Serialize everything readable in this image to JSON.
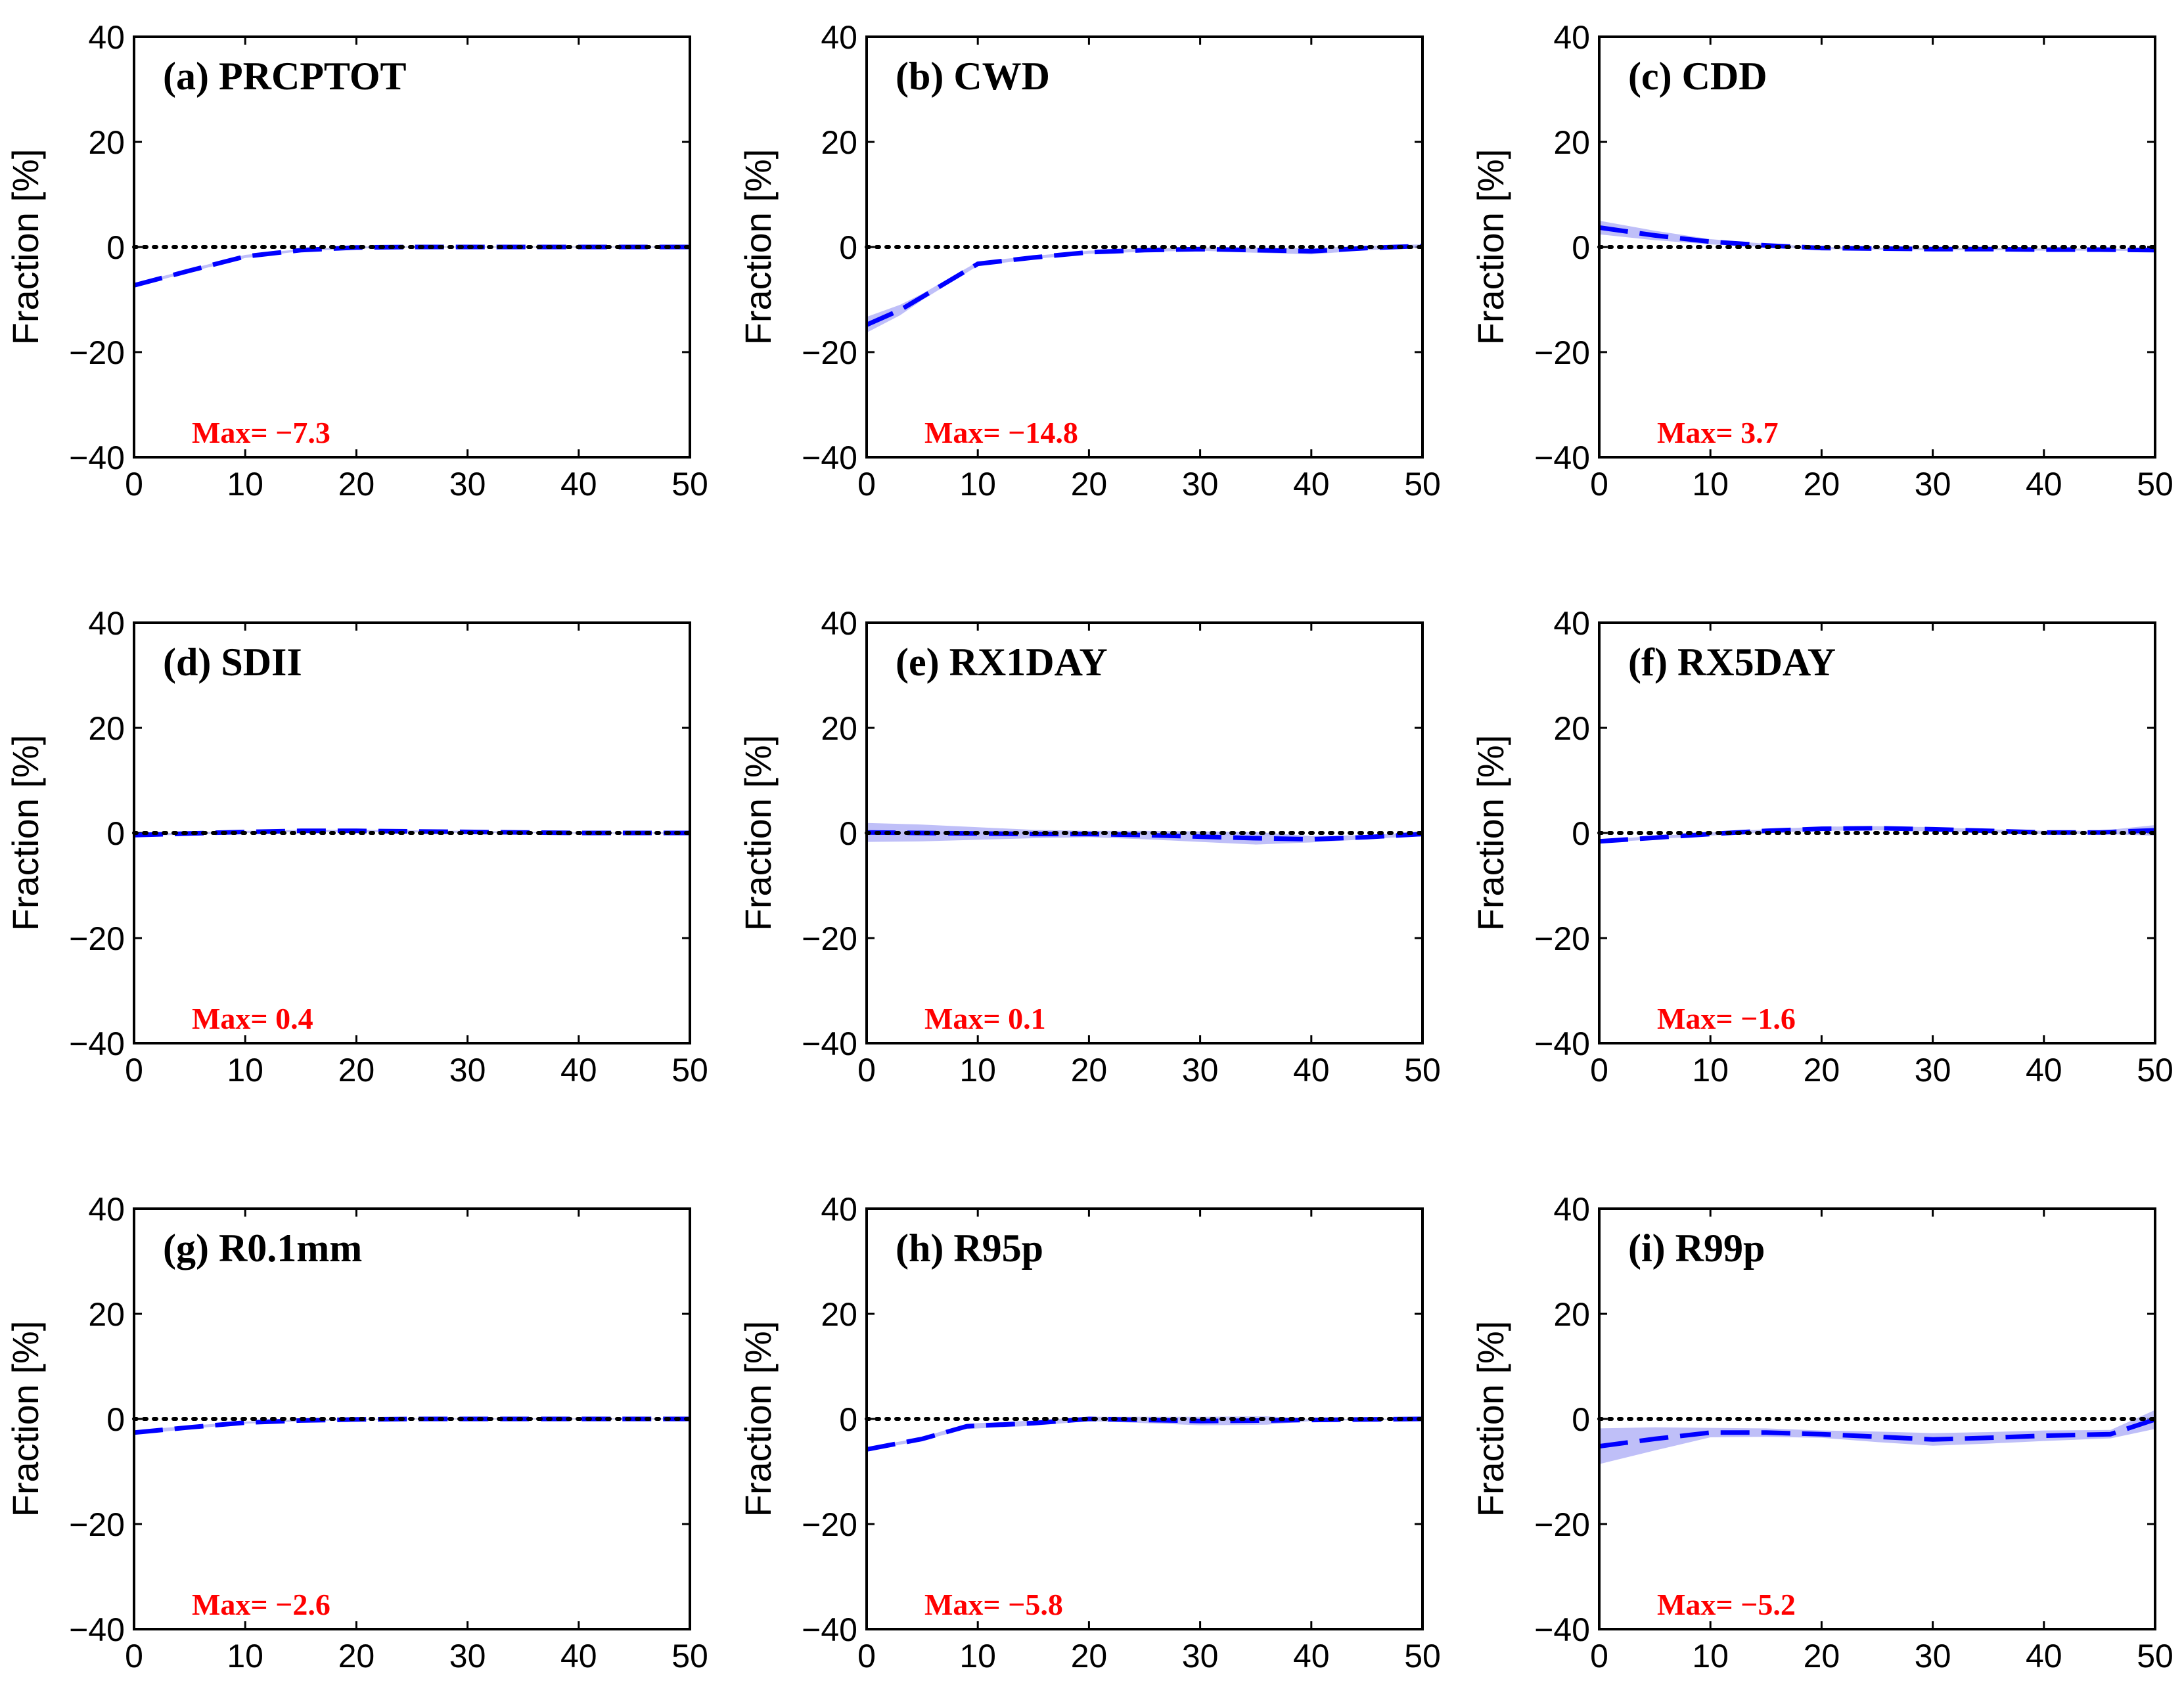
{
  "figure": {
    "colors": {
      "series": "#0000ff",
      "band": "#a9a9f5",
      "zero_line": "#000000",
      "max_text": "#ff0000",
      "axis": "#000000"
    }
  },
  "chart_data": [
    {
      "type": "line",
      "title": "(a) PRCPTOT",
      "ylabel": "Fraction [%]",
      "xlim": [
        0,
        50
      ],
      "ylim": [
        -40,
        40
      ],
      "xticks": [
        "0",
        "10",
        "20",
        "30",
        "40",
        "50"
      ],
      "yticks": [
        "40",
        "20",
        "0",
        "−20",
        "−40"
      ],
      "annotation": "Max= −7.3",
      "series": [
        {
          "style": "dashed",
          "x": [
            0,
            5,
            10,
            15,
            20,
            25,
            30,
            35,
            40,
            45,
            50
          ],
          "y": [
            -7.3,
            -4.5,
            -1.8,
            -0.6,
            -0.1,
            0.0,
            0.0,
            0.0,
            0.0,
            0.0,
            0.0
          ],
          "spread": [
            0.3,
            0.3,
            0.3,
            0.2,
            0.2,
            0.1,
            0.1,
            0.1,
            0.1,
            0.1,
            0.1
          ]
        }
      ],
      "zero_line": true
    },
    {
      "type": "line",
      "title": "(b) CWD",
      "ylabel": "Fraction [%]",
      "xlim": [
        0,
        50
      ],
      "ylim": [
        -40,
        40
      ],
      "xticks": [
        "0",
        "10",
        "20",
        "30",
        "40",
        "50"
      ],
      "yticks": [
        "40",
        "20",
        "0",
        "−20",
        "−40"
      ],
      "annotation": "Max= −14.8",
      "series": [
        {
          "style": "dashed",
          "x": [
            0,
            3,
            5,
            10,
            15,
            20,
            25,
            30,
            35,
            40,
            45,
            50
          ],
          "y": [
            -14.8,
            -12.0,
            -9.5,
            -3.2,
            -2.0,
            -1.0,
            -0.6,
            -0.4,
            -0.6,
            -0.8,
            -0.2,
            0.2
          ],
          "spread": [
            1.5,
            1.0,
            0.6,
            0.4,
            0.3,
            0.3,
            0.3,
            0.3,
            0.5,
            0.6,
            0.4,
            0.3
          ]
        }
      ],
      "zero_line": true
    },
    {
      "type": "line",
      "title": "(c) CDD",
      "ylabel": "Fraction [%]",
      "xlim": [
        0,
        50
      ],
      "ylim": [
        -40,
        40
      ],
      "xticks": [
        "0",
        "10",
        "20",
        "30",
        "40",
        "50"
      ],
      "yticks": [
        "40",
        "20",
        "0",
        "−20",
        "−40"
      ],
      "annotation": "Max= 3.7",
      "series": [
        {
          "style": "dashed",
          "x": [
            0,
            5,
            10,
            15,
            20,
            25,
            30,
            35,
            40,
            45,
            50
          ],
          "y": [
            3.7,
            2.2,
            1.0,
            0.3,
            -0.2,
            -0.3,
            -0.4,
            -0.4,
            -0.5,
            -0.5,
            -0.6
          ],
          "spread": [
            1.3,
            0.9,
            0.5,
            0.3,
            0.2,
            0.2,
            0.2,
            0.2,
            0.2,
            0.2,
            0.2
          ]
        }
      ],
      "zero_line": true
    },
    {
      "type": "line",
      "title": "(d) SDII",
      "ylabel": "Fraction [%]",
      "xlim": [
        0,
        50
      ],
      "ylim": [
        -40,
        40
      ],
      "xticks": [
        "0",
        "10",
        "20",
        "30",
        "40",
        "50"
      ],
      "yticks": [
        "40",
        "20",
        "0",
        "−20",
        "−40"
      ],
      "annotation": "Max= 0.4",
      "series": [
        {
          "style": "dashed",
          "x": [
            0,
            5,
            10,
            15,
            20,
            25,
            30,
            35,
            40,
            45,
            50
          ],
          "y": [
            -0.4,
            -0.1,
            0.2,
            0.4,
            0.4,
            0.3,
            0.2,
            0.1,
            0.0,
            0.0,
            0.0
          ],
          "spread": [
            0.2,
            0.2,
            0.2,
            0.2,
            0.2,
            0.2,
            0.2,
            0.1,
            0.1,
            0.1,
            0.1
          ]
        }
      ],
      "zero_line": true
    },
    {
      "type": "line",
      "title": "(e) RX1DAY",
      "ylabel": "Fraction [%]",
      "xlim": [
        0,
        50
      ],
      "ylim": [
        -40,
        40
      ],
      "xticks": [
        "0",
        "10",
        "20",
        "30",
        "40",
        "50"
      ],
      "yticks": [
        "40",
        "20",
        "0",
        "−20",
        "−40"
      ],
      "annotation": "Max= 0.1",
      "series": [
        {
          "style": "dashed",
          "x": [
            0,
            5,
            10,
            15,
            20,
            25,
            30,
            35,
            40,
            45,
            50
          ],
          "y": [
            0.1,
            0.0,
            -0.1,
            -0.2,
            -0.2,
            -0.4,
            -0.7,
            -1.0,
            -1.2,
            -0.8,
            -0.2
          ],
          "spread": [
            1.8,
            1.6,
            1.2,
            0.8,
            0.6,
            0.8,
            1.0,
            1.2,
            0.6,
            0.4,
            0.3
          ]
        }
      ],
      "zero_line": true
    },
    {
      "type": "line",
      "title": "(f) RX5DAY",
      "ylabel": "Fraction [%]",
      "xlim": [
        0,
        50
      ],
      "ylim": [
        -40,
        40
      ],
      "xticks": [
        "0",
        "10",
        "20",
        "30",
        "40",
        "50"
      ],
      "yticks": [
        "40",
        "20",
        "0",
        "−20",
        "−40"
      ],
      "annotation": "Max= −1.6",
      "series": [
        {
          "style": "dashed",
          "x": [
            0,
            5,
            10,
            15,
            20,
            25,
            30,
            35,
            40,
            45,
            50
          ],
          "y": [
            -1.6,
            -0.9,
            -0.2,
            0.4,
            0.8,
            0.9,
            0.7,
            0.4,
            0.1,
            0.1,
            0.5
          ],
          "spread": [
            0.3,
            0.3,
            0.3,
            0.3,
            0.4,
            0.4,
            0.4,
            0.3,
            0.3,
            0.3,
            1.0
          ]
        }
      ],
      "zero_line": true
    },
    {
      "type": "line",
      "title": "(g) R0.1mm",
      "ylabel": "Fraction [%]",
      "xlim": [
        0,
        50
      ],
      "ylim": [
        -40,
        40
      ],
      "xticks": [
        "0",
        "10",
        "20",
        "30",
        "40",
        "50"
      ],
      "yticks": [
        "40",
        "20",
        "0",
        "−20",
        "−40"
      ],
      "annotation": "Max= −2.6",
      "series": [
        {
          "style": "dashed",
          "x": [
            0,
            5,
            10,
            15,
            20,
            25,
            30,
            35,
            40,
            45,
            50
          ],
          "y": [
            -2.6,
            -1.6,
            -0.7,
            -0.3,
            -0.1,
            0.0,
            0.0,
            0.0,
            0.0,
            0.0,
            0.0
          ],
          "spread": [
            0.4,
            0.3,
            0.2,
            0.2,
            0.1,
            0.1,
            0.1,
            0.1,
            0.1,
            0.1,
            0.1
          ]
        }
      ],
      "zero_line": true
    },
    {
      "type": "line",
      "title": "(h) R95p",
      "ylabel": "Fraction [%]",
      "xlim": [
        0,
        50
      ],
      "ylim": [
        -40,
        40
      ],
      "xticks": [
        "0",
        "10",
        "20",
        "30",
        "40",
        "50"
      ],
      "yticks": [
        "40",
        "20",
        "0",
        "−20",
        "−40"
      ],
      "annotation": "Max= −5.8",
      "series": [
        {
          "style": "dashed",
          "x": [
            0,
            5,
            9,
            15,
            20,
            25,
            30,
            36,
            40,
            45,
            50
          ],
          "y": [
            -5.8,
            -3.8,
            -1.4,
            -0.8,
            0.0,
            -0.2,
            -0.4,
            -0.3,
            -0.2,
            -0.1,
            0.0
          ],
          "spread": [
            0.3,
            0.3,
            0.5,
            0.5,
            0.4,
            0.6,
            0.8,
            0.8,
            0.2,
            0.1,
            0.1
          ]
        }
      ],
      "zero_line": true
    },
    {
      "type": "line",
      "title": "(i) R99p",
      "ylabel": "Fraction [%]",
      "xlim": [
        0,
        50
      ],
      "ylim": [
        -40,
        40
      ],
      "xticks": [
        "0",
        "10",
        "20",
        "30",
        "40",
        "50"
      ],
      "yticks": [
        "40",
        "20",
        "0",
        "−20",
        "−40"
      ],
      "annotation": "Max= −5.2",
      "series": [
        {
          "style": "dashed",
          "x": [
            0,
            5,
            10,
            15,
            20,
            25,
            30,
            35,
            40,
            46,
            50
          ],
          "y": [
            -5.2,
            -3.8,
            -2.6,
            -2.6,
            -2.9,
            -3.4,
            -3.9,
            -3.6,
            -3.2,
            -2.9,
            -0.1
          ],
          "spread": [
            3.4,
            2.2,
            0.9,
            0.8,
            0.7,
            1.0,
            1.2,
            1.1,
            1.0,
            0.8,
            1.8
          ]
        }
      ],
      "zero_line": true
    }
  ]
}
